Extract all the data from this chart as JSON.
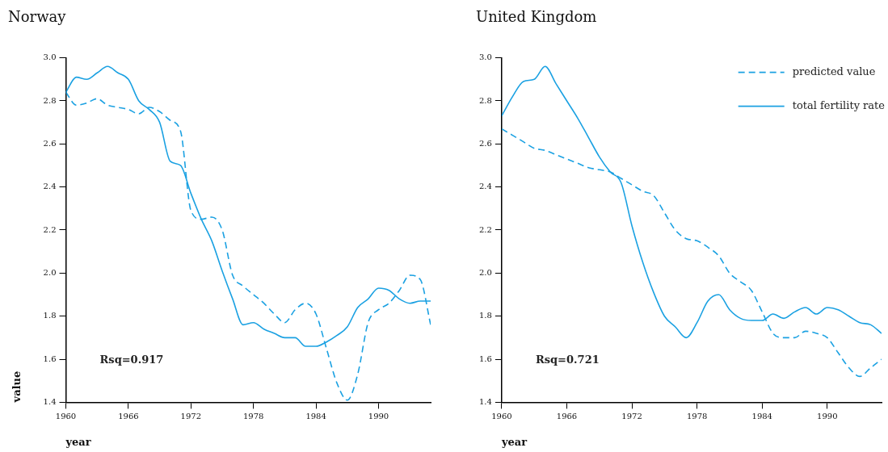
{
  "chart_data": [
    {
      "type": "line",
      "title": "Norway",
      "xlabel": "year",
      "ylabel": "value",
      "annotations": [
        "Rsq=0.917"
      ],
      "legend": false,
      "grid": false,
      "x": [
        1960,
        1961,
        1962,
        1963,
        1964,
        1965,
        1966,
        1967,
        1968,
        1969,
        1970,
        1971,
        1972,
        1973,
        1974,
        1975,
        1976,
        1977,
        1978,
        1979,
        1980,
        1981,
        1982,
        1983,
        1984,
        1985,
        1986,
        1987,
        1988,
        1989,
        1990,
        1991,
        1992,
        1993,
        1994,
        1995
      ],
      "xlim": [
        1960,
        1995
      ],
      "xticks": [
        1960,
        1966,
        1972,
        1978,
        1984,
        1990
      ],
      "ylim": [
        1.4,
        3.0
      ],
      "yticks": [
        {
          "value": 1.4,
          "label": "1.4"
        },
        {
          "value": 1.6,
          "label": "1.6"
        },
        {
          "value": 1.8,
          "label": "1.8"
        },
        {
          "value": 2.0,
          "label": "2.0"
        },
        {
          "value": 2.2,
          "label": "2.2"
        },
        {
          "value": 2.4,
          "label": "2.4"
        },
        {
          "value": 2.6,
          "label": "2.6"
        },
        {
          "value": 2.8,
          "label": "2.8"
        },
        {
          "value": 3.0,
          "label": "3.0"
        }
      ],
      "series": [
        {
          "color": "#1ba1e2",
          "line_style": "dashed",
          "values": [
            2.84,
            2.78,
            2.79,
            2.81,
            2.78,
            2.77,
            2.76,
            2.74,
            2.77,
            2.75,
            2.71,
            2.66,
            2.29,
            2.25,
            2.26,
            2.2,
            1.99,
            1.94,
            1.9,
            1.86,
            1.81,
            1.77,
            1.83,
            1.86,
            1.81,
            1.65,
            1.49,
            1.41,
            1.53,
            1.77,
            1.83,
            1.86,
            1.92,
            1.99,
            1.97,
            1.76
          ]
        },
        {
          "color": "#1ba1e2",
          "line_style": "solid",
          "values": [
            2.84,
            2.91,
            2.9,
            2.93,
            2.96,
            2.93,
            2.9,
            2.8,
            2.76,
            2.7,
            2.52,
            2.5,
            2.37,
            2.25,
            2.15,
            2.01,
            1.88,
            1.76,
            1.77,
            1.74,
            1.72,
            1.7,
            1.7,
            1.66,
            1.66,
            1.68,
            1.71,
            1.75,
            1.84,
            1.88,
            1.93,
            1.92,
            1.88,
            1.86,
            1.87,
            1.87
          ]
        }
      ]
    },
    {
      "type": "line",
      "title": "United Kingdom",
      "xlabel": "year",
      "annotations": [
        "Rsq=0.721"
      ],
      "legend": "top right",
      "grid": false,
      "x": [
        1960,
        1961,
        1962,
        1963,
        1964,
        1965,
        1966,
        1967,
        1968,
        1969,
        1970,
        1971,
        1972,
        1973,
        1974,
        1975,
        1976,
        1977,
        1978,
        1979,
        1980,
        1981,
        1982,
        1983,
        1984,
        1985,
        1986,
        1987,
        1988,
        1989,
        1990,
        1991,
        1992,
        1993,
        1994,
        1995
      ],
      "xlim": [
        1960,
        1995
      ],
      "xticks": [
        1960,
        1966,
        1972,
        1978,
        1984,
        1990
      ],
      "ylim": [
        1.4,
        3.0
      ],
      "yticks": [
        {
          "value": 1.4,
          "label": "1.4"
        },
        {
          "value": 1.6,
          "label": "1.6"
        },
        {
          "value": 1.8,
          "label": "1.8"
        },
        {
          "value": 2.0,
          "label": "2.0"
        },
        {
          "value": 2.2,
          "label": "2.2"
        },
        {
          "value": 2.4,
          "label": "2.4"
        },
        {
          "value": 2.6,
          "label": "2.6"
        },
        {
          "value": 2.8,
          "label": "2.8"
        },
        {
          "value": 3.0,
          "label": "3.0"
        }
      ],
      "series": [
        {
          "name": "predicted value",
          "color": "#1ba1e2",
          "line_style": "dashed",
          "values": [
            2.67,
            2.64,
            2.61,
            2.58,
            2.57,
            2.55,
            2.53,
            2.51,
            2.49,
            2.48,
            2.47,
            2.44,
            2.41,
            2.38,
            2.36,
            2.28,
            2.2,
            2.16,
            2.15,
            2.12,
            2.08,
            2.0,
            1.96,
            1.92,
            1.82,
            1.72,
            1.7,
            1.7,
            1.73,
            1.72,
            1.7,
            1.63,
            1.56,
            1.52,
            1.56,
            1.6
          ]
        },
        {
          "name": "total fertility rate",
          "color": "#1ba1e2",
          "line_style": "solid",
          "values": [
            2.73,
            2.82,
            2.89,
            2.9,
            2.96,
            2.88,
            2.8,
            2.72,
            2.63,
            2.54,
            2.47,
            2.42,
            2.22,
            2.05,
            1.91,
            1.8,
            1.75,
            1.7,
            1.77,
            1.87,
            1.9,
            1.83,
            1.79,
            1.78,
            1.78,
            1.81,
            1.79,
            1.82,
            1.84,
            1.81,
            1.84,
            1.83,
            1.8,
            1.77,
            1.76,
            1.72
          ]
        }
      ]
    }
  ]
}
